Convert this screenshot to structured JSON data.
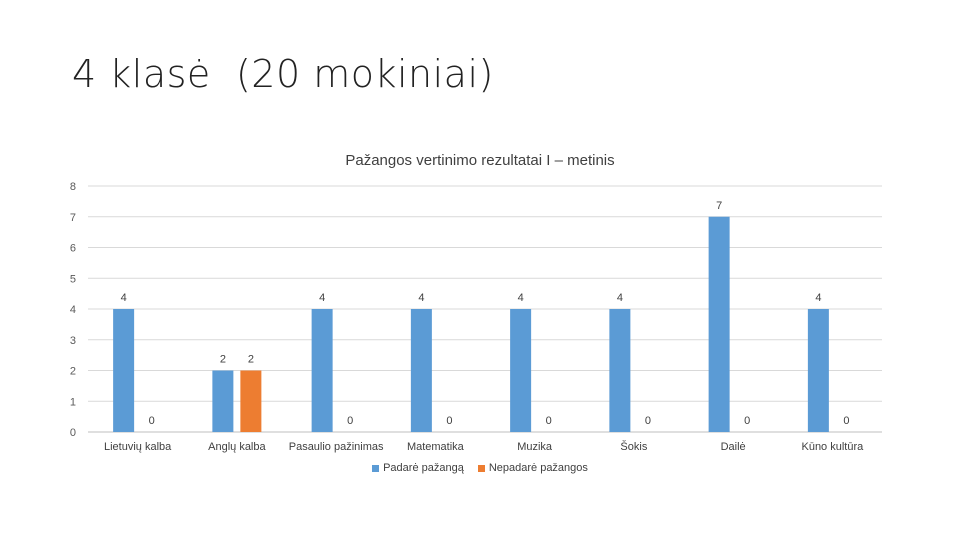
{
  "slide": {
    "title": "4 klasė  (20 mokiniai)"
  },
  "chart_data": {
    "type": "bar",
    "title": "Pažangos vertinimo rezultatai I – metinis",
    "categories": [
      "Lietuvių kalba",
      "Anglų kalba",
      "Pasaulio pažinimas",
      "Matematika",
      "Muzika",
      "Šokis",
      "Dailė",
      "Kūno kultūra"
    ],
    "series": [
      {
        "name": "Padarė pažangą",
        "values": [
          4,
          2,
          4,
          4,
          4,
          4,
          7,
          4
        ],
        "color": "#5b9bd5"
      },
      {
        "name": "Nepadarė pažangos",
        "values": [
          0,
          2,
          0,
          0,
          0,
          0,
          0,
          0
        ],
        "color": "#ed7d31"
      }
    ],
    "ylim": [
      0,
      8
    ],
    "yticks": [
      0,
      1,
      2,
      3,
      4,
      5,
      6,
      7,
      8
    ],
    "grid": true,
    "data_labels": true,
    "legend_position": "bottom"
  }
}
